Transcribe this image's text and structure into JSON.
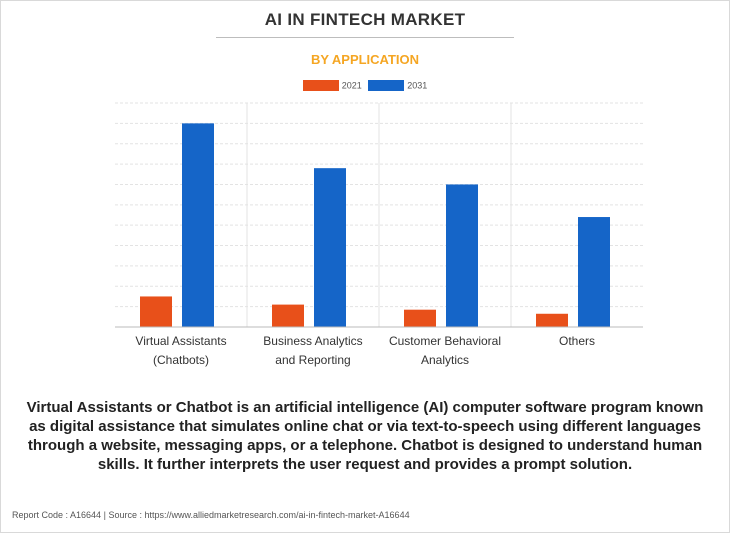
{
  "header": {
    "title": "AI IN FINTECH MARKET",
    "subtitle": "BY APPLICATION"
  },
  "colors": {
    "series_2021": "#e8501a",
    "series_2031": "#1565c8",
    "subtitle": "#f5a623"
  },
  "chart_data": {
    "type": "bar",
    "title": "AI IN FINTECH MARKET",
    "subtitle": "BY APPLICATION",
    "categories": [
      [
        "Virtual Assistants",
        "(Chatbots)"
      ],
      [
        "Business Analytics",
        "and Reporting"
      ],
      [
        "Customer Behavioral",
        "Analytics"
      ],
      [
        "Others"
      ]
    ],
    "series": [
      {
        "name": "2021",
        "values": [
          15,
          11,
          8.5,
          6.5
        ]
      },
      {
        "name": "2031",
        "values": [
          100,
          78,
          70,
          54
        ]
      }
    ],
    "ylim": [
      0,
      110
    ],
    "grid": true,
    "legend_position": "top-center",
    "xlabel": "",
    "ylabel": ""
  },
  "description": "Virtual Assistants or Chatbot is an artificial intelligence (AI) computer software program known as digital assistance that simulates online chat or via text-to-speech using different languages through a website, messaging apps, or a telephone. Chatbot is designed to understand human skills. It further interprets the user request and provides a prompt solution.",
  "footer": {
    "report_code": "Report Code : A16644",
    "separator": "|",
    "source": "Source : https://www.alliedmarketresearch.com/ai-in-fintech-market-A16644"
  }
}
